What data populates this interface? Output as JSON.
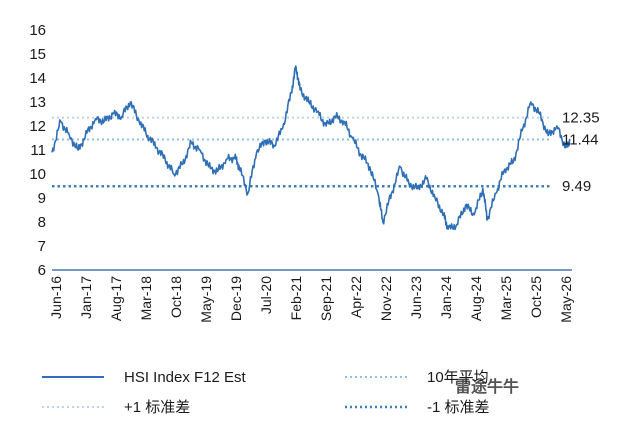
{
  "chart_data": {
    "type": "line",
    "title": "",
    "xlabel": "",
    "ylabel": "",
    "ylim": [
      6,
      16
    ],
    "yticks": [
      6,
      7,
      8,
      9,
      10,
      11,
      12,
      13,
      14,
      15,
      16
    ],
    "x_tick_labels": [
      "Jun-16",
      "Jan-17",
      "Aug-17",
      "Mar-18",
      "Oct-18",
      "May-19",
      "Dec-19",
      "Jul-20",
      "Feb-21",
      "Sep-21",
      "Apr-22",
      "Nov-22",
      "Jun-23",
      "Jan-24",
      "Aug-24",
      "Mar-25",
      "Oct-25",
      "May-26"
    ],
    "grid": false,
    "legend_position": "bottom",
    "colors": {
      "series": "#2f6fb5",
      "mean": "#8fc0e0",
      "plus1sd": "#bcd4e6",
      "minus1sd": "#3d7fb8",
      "axis": "#4a78b0"
    },
    "reference_lines": [
      {
        "key": "plus1sd",
        "value": 12.35,
        "label": "12.35"
      },
      {
        "key": "mean",
        "value": 11.44,
        "label": "11.44"
      },
      {
        "key": "minus1sd",
        "value": 9.49,
        "label": "9.49"
      }
    ],
    "series": [
      {
        "name": "HSI Index F12 Est",
        "x": [
          "2016-06",
          "2016-08",
          "2016-10",
          "2016-12",
          "2017-02",
          "2017-04",
          "2017-06",
          "2017-08",
          "2017-10",
          "2017-12",
          "2018-02",
          "2018-04",
          "2018-06",
          "2018-08",
          "2018-10",
          "2018-12",
          "2019-02",
          "2019-04",
          "2019-06",
          "2019-08",
          "2019-10",
          "2019-12",
          "2020-01",
          "2020-03",
          "2020-05",
          "2020-07",
          "2020-09",
          "2020-11",
          "2021-01",
          "2021-02",
          "2021-03",
          "2021-05",
          "2021-07",
          "2021-09",
          "2021-11",
          "2022-01",
          "2022-03",
          "2022-05",
          "2022-07",
          "2022-09",
          "2022-10",
          "2022-12",
          "2023-02",
          "2023-04",
          "2023-06",
          "2023-08",
          "2023-10",
          "2023-12",
          "2024-01",
          "2024-03",
          "2024-05",
          "2024-07",
          "2024-09",
          "2024-10",
          "2024-12",
          "2025-02",
          "2025-04",
          "2025-06",
          "2025-08",
          "2025-10",
          "2025-12",
          "2026-02",
          "2026-04",
          "2026-05"
        ],
        "values": [
          10.9,
          12.2,
          11.6,
          11.0,
          11.7,
          12.3,
          12.2,
          12.5,
          12.4,
          13.0,
          12.2,
          11.6,
          11.1,
          10.6,
          10.0,
          10.4,
          11.3,
          11.0,
          10.3,
          10.1,
          10.6,
          10.7,
          10.3,
          9.2,
          10.9,
          11.4,
          11.2,
          11.9,
          13.4,
          14.5,
          13.5,
          13.0,
          12.6,
          12.0,
          12.4,
          12.2,
          11.5,
          10.8,
          10.3,
          9.1,
          8.0,
          9.2,
          10.3,
          9.6,
          9.4,
          9.8,
          9.0,
          8.3,
          7.7,
          7.9,
          8.7,
          8.3,
          9.4,
          8.1,
          9.2,
          10.2,
          10.5,
          11.8,
          13.0,
          12.5,
          11.6,
          12.0,
          11.1,
          11.4
        ]
      }
    ],
    "legend": [
      {
        "key": "series",
        "label": "HSI Index F12 Est",
        "style": "solid"
      },
      {
        "key": "mean",
        "label": "10年平均",
        "style": "dotted"
      },
      {
        "key": "plus1sd",
        "label": "+1 标准差",
        "style": "dotted"
      },
      {
        "key": "minus1sd",
        "label": "-1 标准差",
        "style": "dotted"
      }
    ],
    "watermark": "雷途牛牛"
  }
}
